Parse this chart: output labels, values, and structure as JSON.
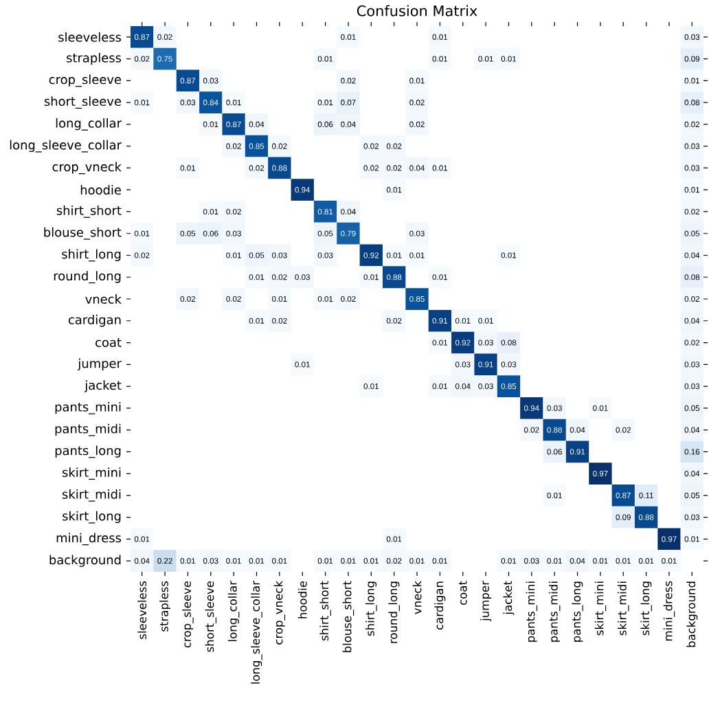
{
  "chart_data": {
    "type": "heatmap",
    "title": "Confusion Matrix",
    "categories": [
      "sleeveless",
      "strapless",
      "crop_sleeve",
      "short_sleeve",
      "long_collar",
      "long_sleeve_collar",
      "crop_vneck",
      "hoodie",
      "shirt_short",
      "blouse_short",
      "shirt_long",
      "round_long",
      "vneck",
      "cardigan",
      "coat",
      "jumper",
      "jacket",
      "pants_mini",
      "pants_midi",
      "pants_long",
      "skirt_mini",
      "skirt_midi",
      "skirt_long",
      "mini_dress",
      "background"
    ],
    "y_categories": [
      "sleeveless",
      "strapless",
      "crop_sleeve",
      "short_sleeve",
      "long_collar",
      "long_sleeve_collar",
      "crop_vneck",
      "hoodie",
      "shirt_short",
      "blouse_short",
      "shirt_long",
      "round_long",
      "vneck",
      "cardigan",
      "coat",
      "jumper",
      "jacket",
      "pants_mini",
      "pants_midi",
      "pants_long",
      "skirt_mini",
      "skirt_midi",
      "skirt_long",
      "mini_dress",
      "background"
    ],
    "data_labels": true,
    "cell_labels": [
      [
        "0.87",
        "0.02",
        null,
        null,
        null,
        null,
        null,
        null,
        null,
        "0.01",
        null,
        null,
        null,
        "0.01",
        null,
        null,
        null,
        null,
        null,
        null,
        null,
        null,
        null,
        null,
        "0.03"
      ],
      [
        "0.02",
        "0.75",
        null,
        null,
        null,
        null,
        null,
        null,
        "0.01",
        null,
        null,
        null,
        null,
        "0.01",
        null,
        "0.01",
        "0.01",
        null,
        null,
        null,
        null,
        null,
        null,
        null,
        "0.09"
      ],
      [
        null,
        null,
        "0.87",
        "0.03",
        null,
        null,
        null,
        null,
        null,
        "0.02",
        null,
        null,
        "0.01",
        null,
        null,
        null,
        null,
        null,
        null,
        null,
        null,
        null,
        null,
        null,
        "0.01"
      ],
      [
        "0.01",
        null,
        "0.03",
        "0.84",
        "0.01",
        null,
        null,
        null,
        "0.01",
        "0.07",
        null,
        null,
        "0.02",
        null,
        null,
        null,
        null,
        null,
        null,
        null,
        null,
        null,
        null,
        null,
        "0.08"
      ],
      [
        null,
        null,
        null,
        "0.01",
        "0.87",
        "0.04",
        null,
        null,
        "0.06",
        "0.04",
        null,
        null,
        "0.02",
        null,
        null,
        null,
        null,
        null,
        null,
        null,
        null,
        null,
        null,
        null,
        "0.02"
      ],
      [
        null,
        null,
        null,
        null,
        "0.02",
        "0.85",
        "0.02",
        null,
        null,
        null,
        "0.02",
        "0.02",
        null,
        null,
        null,
        null,
        null,
        null,
        null,
        null,
        null,
        null,
        null,
        null,
        "0.03"
      ],
      [
        null,
        null,
        "0.01",
        null,
        null,
        "0.02",
        "0.88",
        null,
        null,
        null,
        "0.02",
        "0.02",
        "0.04",
        "0.01",
        null,
        null,
        null,
        null,
        null,
        null,
        null,
        null,
        null,
        null,
        "0.03"
      ],
      [
        null,
        null,
        null,
        null,
        null,
        null,
        null,
        "0.94",
        null,
        null,
        null,
        "0.01",
        null,
        null,
        null,
        null,
        null,
        null,
        null,
        null,
        null,
        null,
        null,
        null,
        "0.01"
      ],
      [
        null,
        null,
        null,
        "0.01",
        "0.02",
        null,
        null,
        null,
        "0.81",
        "0.04",
        null,
        null,
        null,
        null,
        null,
        null,
        null,
        null,
        null,
        null,
        null,
        null,
        null,
        null,
        "0.02"
      ],
      [
        "0.01",
        null,
        "0.05",
        "0.06",
        "0.03",
        null,
        null,
        null,
        "0.05",
        "0.79",
        null,
        null,
        "0.03",
        null,
        null,
        null,
        null,
        null,
        null,
        null,
        null,
        null,
        null,
        null,
        "0.05"
      ],
      [
        "0.02",
        null,
        null,
        null,
        "0.01",
        "0.05",
        "0.03",
        null,
        "0.03",
        null,
        "0.92",
        "0.01",
        "0.01",
        null,
        null,
        null,
        "0.01",
        null,
        null,
        null,
        null,
        null,
        null,
        null,
        "0.04"
      ],
      [
        null,
        null,
        null,
        null,
        null,
        "0.01",
        "0.02",
        "0.03",
        null,
        null,
        "0.01",
        "0.88",
        null,
        "0.01",
        null,
        null,
        null,
        null,
        null,
        null,
        null,
        null,
        null,
        null,
        "0.08"
      ],
      [
        null,
        null,
        "0.02",
        null,
        "0.02",
        null,
        "0.01",
        null,
        "0.01",
        "0.02",
        null,
        null,
        "0.85",
        null,
        null,
        null,
        null,
        null,
        null,
        null,
        null,
        null,
        null,
        null,
        "0.02"
      ],
      [
        null,
        null,
        null,
        null,
        null,
        "0.01",
        "0.02",
        null,
        null,
        null,
        null,
        "0.02",
        null,
        "0.91",
        "0.01",
        "0.01",
        null,
        null,
        null,
        null,
        null,
        null,
        null,
        null,
        "0.04"
      ],
      [
        null,
        null,
        null,
        null,
        null,
        null,
        null,
        null,
        null,
        null,
        null,
        null,
        null,
        "0.01",
        "0.92",
        "0.03",
        "0.08",
        null,
        null,
        null,
        null,
        null,
        null,
        null,
        "0.02"
      ],
      [
        null,
        null,
        null,
        null,
        null,
        null,
        null,
        "0.01",
        null,
        null,
        null,
        null,
        null,
        null,
        "0.03",
        "0.91",
        "0.03",
        null,
        null,
        null,
        null,
        null,
        null,
        null,
        "0.03"
      ],
      [
        null,
        null,
        null,
        null,
        null,
        null,
        null,
        null,
        null,
        null,
        "0.01",
        null,
        null,
        "0.01",
        "0.04",
        "0.03",
        "0.85",
        null,
        null,
        null,
        null,
        null,
        null,
        null,
        "0.03"
      ],
      [
        null,
        null,
        null,
        null,
        null,
        null,
        null,
        null,
        null,
        null,
        null,
        null,
        null,
        null,
        null,
        null,
        null,
        "0.94",
        "0.03",
        null,
        "0.01",
        null,
        null,
        null,
        "0.05"
      ],
      [
        null,
        null,
        null,
        null,
        null,
        null,
        null,
        null,
        null,
        null,
        null,
        null,
        null,
        null,
        null,
        null,
        null,
        "0.02",
        "0.88",
        "0.04",
        null,
        "0.02",
        null,
        null,
        "0.04"
      ],
      [
        null,
        null,
        null,
        null,
        null,
        null,
        null,
        null,
        null,
        null,
        null,
        null,
        null,
        null,
        null,
        null,
        null,
        null,
        "0.06",
        "0.91",
        null,
        null,
        null,
        null,
        "0.16"
      ],
      [
        null,
        null,
        null,
        null,
        null,
        null,
        null,
        null,
        null,
        null,
        null,
        null,
        null,
        null,
        null,
        null,
        null,
        null,
        null,
        null,
        "0.97",
        null,
        null,
        null,
        "0.04"
      ],
      [
        null,
        null,
        null,
        null,
        null,
        null,
        null,
        null,
        null,
        null,
        null,
        null,
        null,
        null,
        null,
        null,
        null,
        null,
        "0.01",
        null,
        null,
        "0.87",
        "0.11",
        null,
        "0.05"
      ],
      [
        null,
        null,
        null,
        null,
        null,
        null,
        null,
        null,
        null,
        null,
        null,
        null,
        null,
        null,
        null,
        null,
        null,
        null,
        null,
        null,
        null,
        "0.09",
        "0.88",
        null,
        "0.03"
      ],
      [
        "0.01",
        null,
        null,
        null,
        null,
        null,
        null,
        null,
        null,
        null,
        null,
        "0.01",
        null,
        null,
        null,
        null,
        null,
        null,
        null,
        null,
        null,
        null,
        null,
        "0.97",
        "0.01"
      ],
      [
        "0.04",
        "0.22",
        "0.01",
        "0.03",
        "0.01",
        "0.01",
        "0.01",
        null,
        "0.01",
        "0.01",
        "0.01",
        "0.02",
        "0.01",
        "0.01",
        null,
        null,
        "0.01",
        "0.03",
        "0.01",
        "0.04",
        "0.01",
        "0.01",
        "0.01",
        "0.01",
        null
      ]
    ],
    "cells": [
      [
        0.87,
        0.02,
        null,
        null,
        null,
        null,
        null,
        null,
        null,
        0.01,
        null,
        null,
        null,
        0.01,
        null,
        null,
        null,
        null,
        null,
        null,
        null,
        null,
        null,
        null,
        0.03
      ],
      [
        0.02,
        0.75,
        null,
        null,
        null,
        null,
        null,
        null,
        0.01,
        null,
        null,
        null,
        null,
        0.01,
        null,
        0.01,
        0.01,
        null,
        null,
        null,
        null,
        null,
        null,
        null,
        0.09
      ],
      [
        null,
        null,
        0.87,
        0.03,
        null,
        null,
        null,
        null,
        null,
        0.02,
        null,
        null,
        0.01,
        null,
        null,
        null,
        null,
        null,
        null,
        null,
        null,
        null,
        null,
        null,
        0.01
      ],
      [
        0.01,
        null,
        0.03,
        0.84,
        0.01,
        null,
        null,
        null,
        0.01,
        0.07,
        null,
        null,
        0.02,
        null,
        null,
        null,
        null,
        null,
        null,
        null,
        null,
        null,
        null,
        null,
        0.08
      ],
      [
        null,
        null,
        null,
        0.01,
        0.87,
        0.04,
        null,
        null,
        0.06,
        0.04,
        null,
        null,
        0.02,
        null,
        null,
        null,
        null,
        null,
        null,
        null,
        null,
        null,
        null,
        null,
        0.02
      ],
      [
        null,
        null,
        null,
        null,
        0.02,
        0.85,
        0.02,
        null,
        null,
        null,
        0.02,
        0.02,
        null,
        null,
        null,
        null,
        null,
        null,
        null,
        null,
        null,
        null,
        null,
        null,
        0.03
      ],
      [
        null,
        null,
        0.01,
        null,
        null,
        0.02,
        0.88,
        null,
        null,
        null,
        0.02,
        0.02,
        0.04,
        0.01,
        null,
        null,
        null,
        null,
        null,
        null,
        null,
        null,
        null,
        null,
        0.03
      ],
      [
        null,
        null,
        null,
        null,
        null,
        null,
        null,
        0.94,
        null,
        null,
        null,
        0.01,
        null,
        null,
        null,
        null,
        null,
        null,
        null,
        null,
        null,
        null,
        null,
        null,
        0.01
      ],
      [
        null,
        null,
        null,
        0.01,
        0.02,
        null,
        null,
        null,
        0.81,
        0.04,
        null,
        null,
        null,
        null,
        null,
        null,
        null,
        null,
        null,
        null,
        null,
        null,
        null,
        null,
        0.02
      ],
      [
        0.01,
        null,
        0.05,
        0.06,
        0.03,
        null,
        null,
        null,
        0.05,
        0.79,
        null,
        null,
        0.03,
        null,
        null,
        null,
        null,
        null,
        null,
        null,
        null,
        null,
        null,
        null,
        0.05
      ],
      [
        0.02,
        null,
        null,
        null,
        0.01,
        0.05,
        0.03,
        null,
        0.03,
        null,
        0.92,
        0.01,
        0.01,
        null,
        null,
        null,
        0.01,
        null,
        null,
        null,
        null,
        null,
        null,
        null,
        0.04
      ],
      [
        null,
        null,
        null,
        null,
        null,
        0.01,
        0.02,
        0.03,
        null,
        null,
        0.01,
        0.88,
        null,
        0.01,
        null,
        null,
        null,
        null,
        null,
        null,
        null,
        null,
        null,
        null,
        0.08
      ],
      [
        null,
        null,
        0.02,
        null,
        0.02,
        null,
        0.01,
        null,
        0.01,
        0.02,
        null,
        null,
        0.85,
        null,
        null,
        null,
        null,
        null,
        null,
        null,
        null,
        null,
        null,
        null,
        0.02
      ],
      [
        null,
        null,
        null,
        null,
        null,
        0.01,
        0.02,
        null,
        null,
        null,
        null,
        0.02,
        null,
        0.91,
        0.01,
        0.01,
        null,
        null,
        null,
        null,
        null,
        null,
        null,
        null,
        0.04
      ],
      [
        null,
        null,
        null,
        null,
        null,
        null,
        null,
        null,
        null,
        null,
        null,
        null,
        null,
        0.01,
        0.92,
        0.03,
        0.08,
        null,
        null,
        null,
        null,
        null,
        null,
        null,
        0.02
      ],
      [
        null,
        null,
        null,
        null,
        null,
        null,
        null,
        0.01,
        null,
        null,
        null,
        null,
        null,
        null,
        0.03,
        0.91,
        0.03,
        null,
        null,
        null,
        null,
        null,
        null,
        null,
        0.03
      ],
      [
        null,
        null,
        null,
        null,
        null,
        null,
        null,
        null,
        null,
        null,
        0.01,
        null,
        null,
        0.01,
        0.04,
        0.03,
        0.85,
        null,
        null,
        null,
        null,
        null,
        null,
        null,
        0.03
      ],
      [
        null,
        null,
        null,
        null,
        null,
        null,
        null,
        null,
        null,
        null,
        null,
        null,
        null,
        null,
        null,
        null,
        null,
        0.94,
        0.03,
        null,
        0.01,
        null,
        null,
        null,
        0.05
      ],
      [
        null,
        null,
        null,
        null,
        null,
        null,
        null,
        null,
        null,
        null,
        null,
        null,
        null,
        null,
        null,
        null,
        null,
        0.02,
        0.88,
        0.04,
        null,
        0.02,
        null,
        null,
        0.04
      ],
      [
        null,
        null,
        null,
        null,
        null,
        null,
        null,
        null,
        null,
        null,
        null,
        null,
        null,
        null,
        null,
        null,
        null,
        null,
        0.06,
        0.91,
        null,
        null,
        null,
        null,
        0.16
      ],
      [
        null,
        null,
        null,
        null,
        null,
        null,
        null,
        null,
        null,
        null,
        null,
        null,
        null,
        null,
        null,
        null,
        null,
        null,
        null,
        null,
        0.97,
        null,
        null,
        null,
        0.04
      ],
      [
        null,
        null,
        null,
        null,
        null,
        null,
        null,
        null,
        null,
        null,
        null,
        null,
        null,
        null,
        null,
        null,
        null,
        null,
        0.01,
        null,
        null,
        0.87,
        0.11,
        null,
        0.05
      ],
      [
        null,
        null,
        null,
        null,
        null,
        null,
        null,
        null,
        null,
        null,
        null,
        null,
        null,
        null,
        null,
        null,
        null,
        null,
        null,
        null,
        null,
        0.09,
        0.88,
        null,
        0.03
      ],
      [
        0.01,
        null,
        null,
        null,
        null,
        null,
        null,
        null,
        null,
        null,
        null,
        0.01,
        null,
        null,
        null,
        null,
        null,
        null,
        null,
        null,
        null,
        null,
        null,
        0.97,
        0.01
      ],
      [
        0.04,
        0.22,
        0.01,
        0.03,
        0.01,
        0.01,
        0.01,
        null,
        0.01,
        0.01,
        0.01,
        0.02,
        0.01,
        0.01,
        null,
        null,
        0.01,
        0.03,
        0.01,
        0.04,
        0.01,
        0.01,
        0.01,
        0.01,
        null
      ]
    ]
  }
}
